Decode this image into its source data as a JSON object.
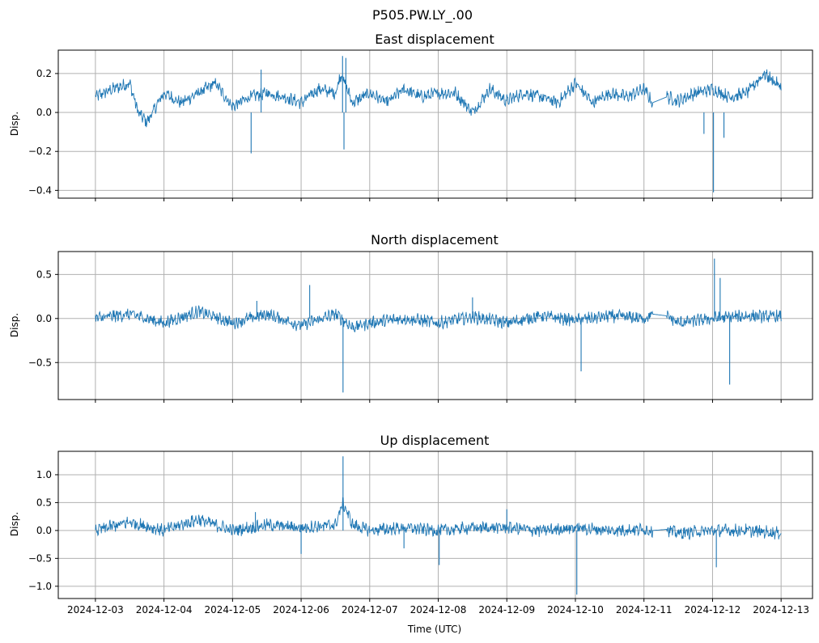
{
  "figure": {
    "suptitle": "P505.PW.LY_.00",
    "xlabel": "Time (UTC)",
    "line_color": "#1f77b4",
    "grid_color": "#b0b0b0"
  },
  "chart_data": [
    {
      "type": "line",
      "title": "East displacement",
      "xlabel": "",
      "ylabel": "Disp.",
      "xlim": [
        "2024-12-02T11:00:00Z",
        "2024-12-13T11:00:00Z"
      ],
      "ylim": [
        -0.44,
        0.32
      ],
      "yticks": [
        -0.4,
        -0.2,
        0.0,
        0.2
      ],
      "ytick_labels": [
        "−0.4",
        "−0.2",
        "0.0",
        "0.2"
      ],
      "grid": true,
      "series": [
        {
          "x": [
            "2024-12-03T00:00Z",
            "2024-12-03T06:00Z",
            "2024-12-03T12:00Z",
            "2024-12-03T15:00Z",
            "2024-12-03T18:00Z",
            "2024-12-04T00:00Z",
            "2024-12-04T06:00Z",
            "2024-12-04T12:00Z",
            "2024-12-04T18:00Z",
            "2024-12-05T00:00Z",
            "2024-12-05T06:00Z",
            "2024-12-05T12:00Z",
            "2024-12-05T18:00Z",
            "2024-12-06T00:00Z",
            "2024-12-06T06:00Z",
            "2024-12-06T12:00Z",
            "2024-12-06T14:00Z",
            "2024-12-06T18:00Z",
            "2024-12-07T00:00Z",
            "2024-12-07T06:00Z",
            "2024-12-07T12:00Z",
            "2024-12-07T18:00Z",
            "2024-12-08T00:00Z",
            "2024-12-08T06:00Z",
            "2024-12-08T12:00Z",
            "2024-12-08T18:00Z",
            "2024-12-09T00:00Z",
            "2024-12-09T06:00Z",
            "2024-12-09T12:00Z",
            "2024-12-09T18:00Z",
            "2024-12-10T00:00Z",
            "2024-12-10T06:00Z",
            "2024-12-10T12:00Z",
            "2024-12-10T18:00Z",
            "2024-12-11T00:00Z",
            "2024-12-11T03:00Z",
            "2024-12-11T08:00Z",
            "2024-12-11T12:00Z",
            "2024-12-11T18:00Z",
            "2024-12-12T00:00Z",
            "2024-12-12T06:00Z",
            "2024-12-12T12:00Z",
            "2024-12-12T18:00Z",
            "2024-12-13T00:00Z"
          ],
          "y": [
            0.08,
            0.12,
            0.15,
            0.0,
            -0.05,
            0.1,
            0.05,
            0.1,
            0.15,
            0.03,
            0.08,
            0.1,
            0.08,
            0.05,
            0.12,
            0.1,
            0.2,
            0.05,
            0.1,
            0.05,
            0.12,
            0.08,
            0.1,
            0.1,
            0.0,
            0.12,
            0.06,
            0.1,
            0.08,
            0.05,
            0.15,
            0.05,
            0.1,
            0.08,
            0.12,
            0.05,
            0.08,
            0.06,
            0.1,
            0.12,
            0.08,
            0.1,
            0.2,
            0.13
          ]
        }
      ],
      "spikes": [
        {
          "x": "2024-12-05T06:30Z",
          "y": -0.21
        },
        {
          "x": "2024-12-05T10:00Z",
          "y": 0.22
        },
        {
          "x": "2024-12-06T14:30Z",
          "y": 0.29
        },
        {
          "x": "2024-12-06T15:00Z",
          "y": -0.19
        },
        {
          "x": "2024-12-06T15:40Z",
          "y": 0.28
        },
        {
          "x": "2024-12-12T00:20Z",
          "y": -0.41
        },
        {
          "x": "2024-12-11T21:00Z",
          "y": -0.11
        },
        {
          "x": "2024-12-12T04:00Z",
          "y": -0.13
        }
      ]
    },
    {
      "type": "line",
      "title": "North displacement",
      "xlabel": "",
      "ylabel": "Disp.",
      "xlim": [
        "2024-12-02T11:00:00Z",
        "2024-12-13T11:00:00Z"
      ],
      "ylim": [
        -0.92,
        0.76
      ],
      "yticks": [
        -0.5,
        0.0,
        0.5
      ],
      "ytick_labels": [
        "−0.5",
        "0.0",
        "0.5"
      ],
      "grid": true,
      "series": [
        {
          "x": [
            "2024-12-03T00:00Z",
            "2024-12-03T12:00Z",
            "2024-12-04T00:00Z",
            "2024-12-04T12:00Z",
            "2024-12-05T00:00Z",
            "2024-12-05T12:00Z",
            "2024-12-06T00:00Z",
            "2024-12-06T12:00Z",
            "2024-12-06T14:00Z",
            "2024-12-06T18:00Z",
            "2024-12-07T00:00Z",
            "2024-12-07T12:00Z",
            "2024-12-08T00:00Z",
            "2024-12-08T12:00Z",
            "2024-12-09T00:00Z",
            "2024-12-09T12:00Z",
            "2024-12-10T00:00Z",
            "2024-12-10T12:00Z",
            "2024-12-11T00:00Z",
            "2024-12-11T03:00Z",
            "2024-12-11T08:00Z",
            "2024-12-11T12:00Z",
            "2024-12-12T00:00Z",
            "2024-12-12T12:00Z",
            "2024-12-13T00:00Z"
          ],
          "y": [
            0.0,
            0.05,
            -0.05,
            0.08,
            -0.05,
            0.05,
            -0.08,
            0.05,
            0.0,
            -0.1,
            -0.05,
            0.0,
            -0.05,
            0.02,
            -0.05,
            0.03,
            -0.02,
            0.03,
            0.0,
            0.05,
            0.03,
            -0.05,
            0.0,
            0.03,
            0.02
          ]
        }
      ],
      "spikes": [
        {
          "x": "2024-12-06T03:00Z",
          "y": 0.38
        },
        {
          "x": "2024-12-06T14:40Z",
          "y": -0.84
        },
        {
          "x": "2024-12-10T02:00Z",
          "y": -0.6
        },
        {
          "x": "2024-12-12T00:40Z",
          "y": 0.68
        },
        {
          "x": "2024-12-12T02:40Z",
          "y": 0.46
        },
        {
          "x": "2024-12-12T06:00Z",
          "y": -0.75
        },
        {
          "x": "2024-12-08T12:00Z",
          "y": 0.24
        },
        {
          "x": "2024-12-05T08:30Z",
          "y": 0.2
        }
      ]
    },
    {
      "type": "line",
      "title": "Up displacement",
      "xlabel": "Time (UTC)",
      "ylabel": "Disp.",
      "xlim": [
        "2024-12-02T11:00:00Z",
        "2024-12-13T11:00:00Z"
      ],
      "ylim": [
        -1.22,
        1.42
      ],
      "yticks": [
        -1.0,
        -0.5,
        0.0,
        0.5,
        1.0
      ],
      "ytick_labels": [
        "−1.0",
        "−0.5",
        "0.0",
        "0.5",
        "1.0"
      ],
      "xticks": [
        "2024-12-03",
        "2024-12-04",
        "2024-12-05",
        "2024-12-06",
        "2024-12-07",
        "2024-12-08",
        "2024-12-09",
        "2024-12-10",
        "2024-12-11",
        "2024-12-12",
        "2024-12-13"
      ],
      "grid": true,
      "series": [
        {
          "x": [
            "2024-12-03T00:00Z",
            "2024-12-03T12:00Z",
            "2024-12-04T00:00Z",
            "2024-12-04T12:00Z",
            "2024-12-05T00:00Z",
            "2024-12-05T12:00Z",
            "2024-12-06T00:00Z",
            "2024-12-06T12:00Z",
            "2024-12-06T14:40Z",
            "2024-12-06T18:00Z",
            "2024-12-07T00:00Z",
            "2024-12-07T12:00Z",
            "2024-12-08T00:00Z",
            "2024-12-08T12:00Z",
            "2024-12-09T00:00Z",
            "2024-12-09T12:00Z",
            "2024-12-10T00:00Z",
            "2024-12-10T12:00Z",
            "2024-12-11T00:00Z",
            "2024-12-11T03:00Z",
            "2024-12-11T08:00Z",
            "2024-12-11T12:00Z",
            "2024-12-12T00:00Z",
            "2024-12-12T12:00Z",
            "2024-12-13T00:00Z"
          ],
          "y": [
            0.0,
            0.15,
            0.0,
            0.2,
            0.0,
            0.1,
            0.05,
            0.1,
            0.5,
            0.1,
            0.0,
            0.05,
            0.0,
            0.05,
            0.05,
            0.0,
            0.05,
            0.0,
            0.02,
            0.0,
            0.02,
            -0.05,
            0.0,
            0.0,
            -0.05
          ]
        }
      ],
      "spikes": [
        {
          "x": "2024-12-06T14:40Z",
          "y": 1.33
        },
        {
          "x": "2024-12-06T00:00Z",
          "y": -0.42
        },
        {
          "x": "2024-12-07T12:00Z",
          "y": -0.32
        },
        {
          "x": "2024-12-08T00:20Z",
          "y": -0.62
        },
        {
          "x": "2024-12-10T00:30Z",
          "y": -1.15
        },
        {
          "x": "2024-12-12T01:20Z",
          "y": -0.66
        },
        {
          "x": "2024-12-09T00:00Z",
          "y": 0.38
        },
        {
          "x": "2024-12-05T08:00Z",
          "y": 0.33
        }
      ]
    }
  ]
}
